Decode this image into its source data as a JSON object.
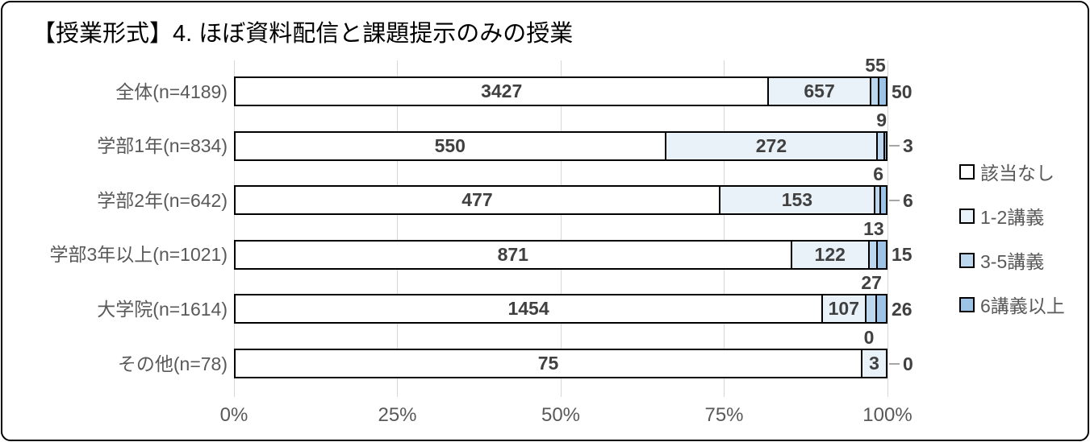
{
  "title": "【授業形式】4. ほぼ資料配信と課題提示のみの授業",
  "chart_data": {
    "type": "bar",
    "subtype": "horizontal-100pct-stacked",
    "title": "【授業形式】4. ほぼ資料配信と課題提示のみの授業",
    "categories": [
      "全体(n=4189)",
      "学部1年(n=834)",
      "学部2年(n=642)",
      "学部3年以上(n=1021)",
      "大学院(n=1614)",
      "その他(n=78)"
    ],
    "totals": [
      4189,
      834,
      642,
      1021,
      1614,
      78
    ],
    "series": [
      {
        "name": "該当なし",
        "color": "#ffffff",
        "values": [
          3427,
          550,
          477,
          871,
          1454,
          75
        ]
      },
      {
        "name": "1-2講義",
        "color": "#e9f1f9",
        "values": [
          657,
          272,
          153,
          122,
          107,
          3
        ]
      },
      {
        "name": "3-5講義",
        "color": "#bdd7ee",
        "values": [
          55,
          9,
          6,
          13,
          27,
          0
        ]
      },
      {
        "name": "6講義以上",
        "color": "#9dc3e6",
        "values": [
          50,
          3,
          6,
          15,
          26,
          0
        ]
      }
    ],
    "x_axis": {
      "tick_labels": [
        "0%",
        "25%",
        "50%",
        "75%",
        "100%"
      ],
      "range": [
        0,
        100
      ]
    },
    "grid": true,
    "legend_position": "right",
    "label_placement": {
      "series_0": "inside-center",
      "series_1": "inside-center",
      "series_2": "above-bar",
      "series_3": "right-of-bar"
    },
    "leader_line_row_indexes": [
      1,
      2,
      5
    ],
    "colors": {
      "bar_border": "#000000",
      "gridline": "#d6d6d6",
      "value_text": "#404040",
      "axis_text": "#595959",
      "leader_line": "#a6a6a6"
    }
  }
}
